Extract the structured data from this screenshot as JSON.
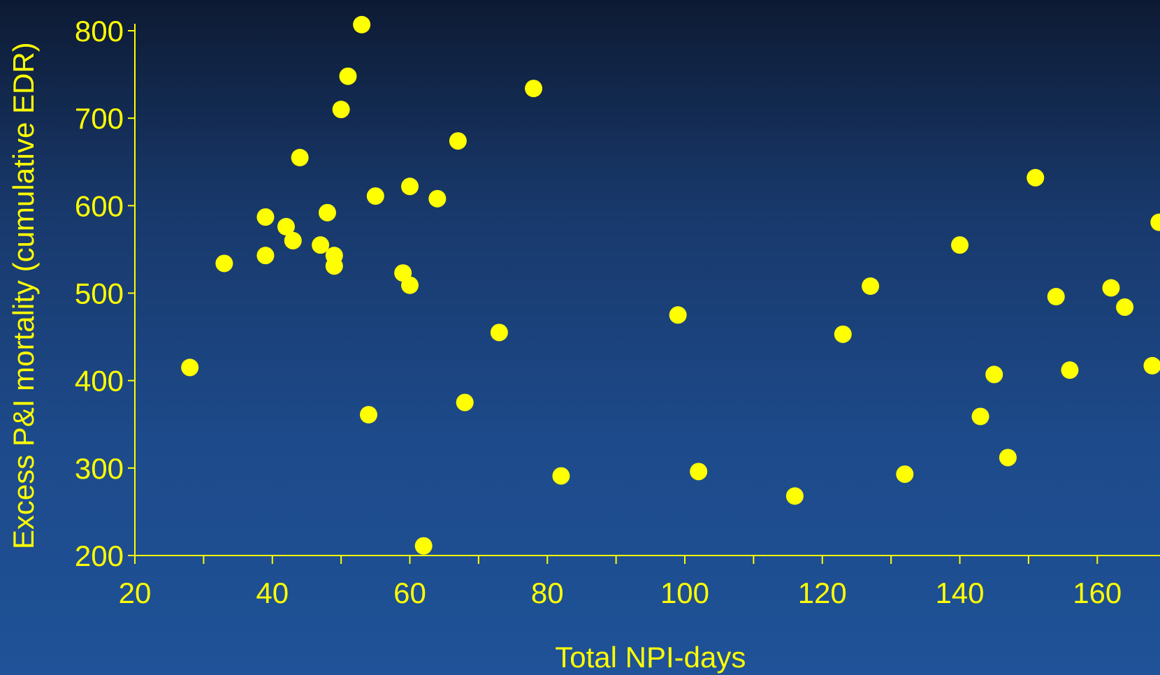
{
  "chart_data": {
    "type": "scatter",
    "title": "",
    "xlabel": "Total NPI-days",
    "ylabel": "Excess P&I mortality (cumulative EDR)",
    "xlim": [
      20,
      170
    ],
    "ylim": [
      200,
      800
    ],
    "x_ticks": [
      "20",
      "40",
      "60",
      "80",
      "100",
      "120",
      "140",
      "160"
    ],
    "y_ticks": [
      "200",
      "300",
      "400",
      "500",
      "600",
      "700",
      "800"
    ],
    "grid": false,
    "legend": "none",
    "marker_color": "#ffff00",
    "points": [
      {
        "x": 28,
        "y": 415
      },
      {
        "x": 33,
        "y": 534
      },
      {
        "x": 39,
        "y": 587
      },
      {
        "x": 39,
        "y": 543
      },
      {
        "x": 42,
        "y": 576
      },
      {
        "x": 43,
        "y": 560
      },
      {
        "x": 44,
        "y": 655
      },
      {
        "x": 47,
        "y": 555
      },
      {
        "x": 48,
        "y": 592
      },
      {
        "x": 49,
        "y": 543
      },
      {
        "x": 49,
        "y": 531
      },
      {
        "x": 50,
        "y": 710
      },
      {
        "x": 51,
        "y": 748
      },
      {
        "x": 53,
        "y": 807
      },
      {
        "x": 54,
        "y": 361
      },
      {
        "x": 55,
        "y": 611
      },
      {
        "x": 59,
        "y": 523
      },
      {
        "x": 60,
        "y": 509
      },
      {
        "x": 60,
        "y": 622
      },
      {
        "x": 62,
        "y": 211
      },
      {
        "x": 64,
        "y": 608
      },
      {
        "x": 67,
        "y": 674
      },
      {
        "x": 68,
        "y": 375
      },
      {
        "x": 73,
        "y": 455
      },
      {
        "x": 78,
        "y": 734
      },
      {
        "x": 82,
        "y": 291
      },
      {
        "x": 99,
        "y": 475
      },
      {
        "x": 102,
        "y": 296
      },
      {
        "x": 116,
        "y": 268
      },
      {
        "x": 123,
        "y": 453
      },
      {
        "x": 127,
        "y": 508
      },
      {
        "x": 132,
        "y": 293
      },
      {
        "x": 140,
        "y": 555
      },
      {
        "x": 143,
        "y": 359
      },
      {
        "x": 145,
        "y": 407
      },
      {
        "x": 147,
        "y": 312
      },
      {
        "x": 151,
        "y": 632
      },
      {
        "x": 154,
        "y": 496
      },
      {
        "x": 156,
        "y": 412
      },
      {
        "x": 162,
        "y": 506
      },
      {
        "x": 164,
        "y": 484
      },
      {
        "x": 168,
        "y": 417
      },
      {
        "x": 169,
        "y": 581
      }
    ]
  }
}
